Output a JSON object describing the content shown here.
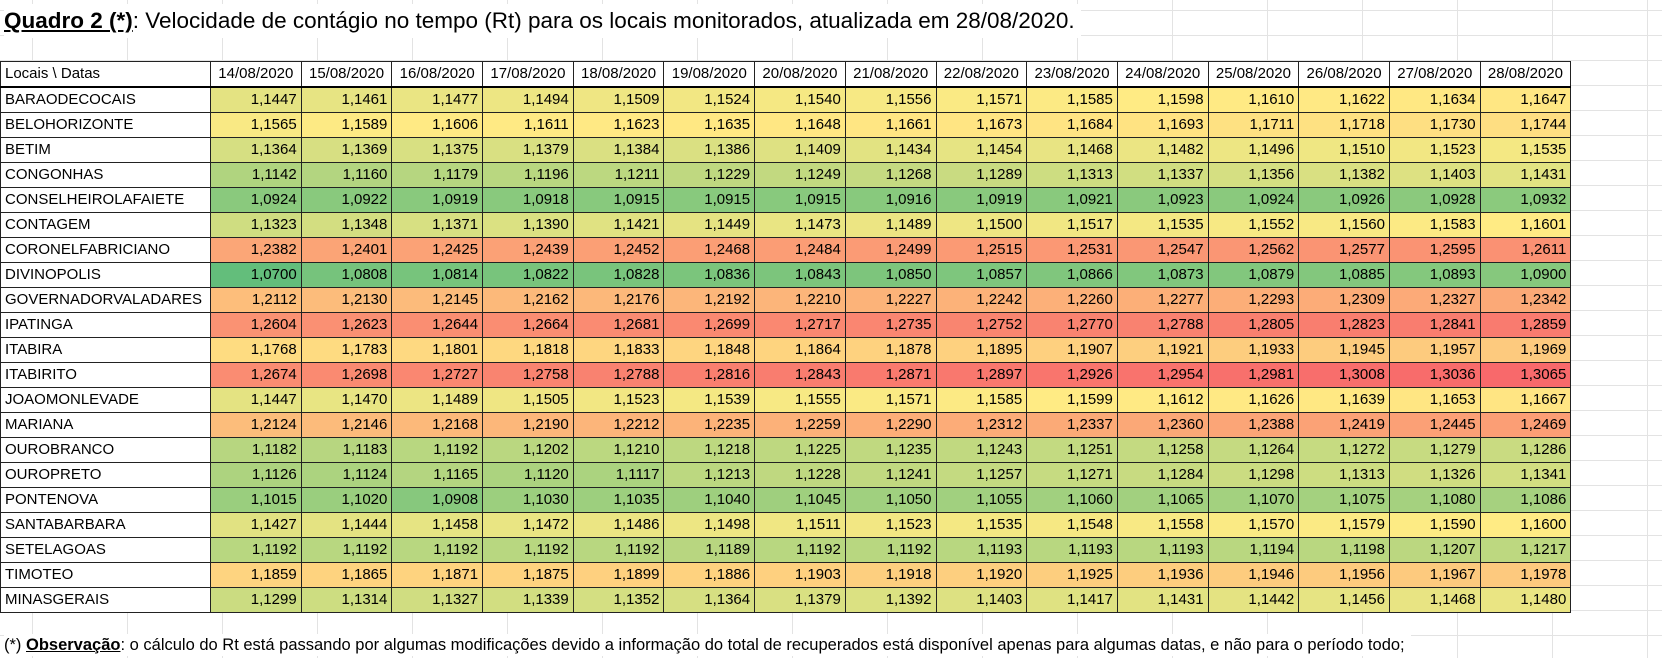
{
  "title": {
    "prefix": "Quadro 2 (*)",
    "text": ": Velocidade de contágio no tempo (Rt) para os locais monitorados,  atualizada em 28/08/2020."
  },
  "table": {
    "corner_header": "Locais   \\  Datas",
    "dates": [
      "14/08/2020",
      "15/08/2020",
      "16/08/2020",
      "17/08/2020",
      "18/08/2020",
      "19/08/2020",
      "20/08/2020",
      "21/08/2020",
      "22/08/2020",
      "23/08/2020",
      "24/08/2020",
      "25/08/2020",
      "26/08/2020",
      "27/08/2020",
      "28/08/2020"
    ],
    "rows": [
      {
        "name": "BARAODECOCAIS",
        "values": [
          "1,1447",
          "1,1461",
          "1,1477",
          "1,1494",
          "1,1509",
          "1,1524",
          "1,1540",
          "1,1556",
          "1,1571",
          "1,1585",
          "1,1598",
          "1,1610",
          "1,1622",
          "1,1634",
          "1,1647"
        ]
      },
      {
        "name": "BELOHORIZONTE",
        "values": [
          "1,1565",
          "1,1589",
          "1,1606",
          "1,1611",
          "1,1623",
          "1,1635",
          "1,1648",
          "1,1661",
          "1,1673",
          "1,1684",
          "1,1693",
          "1,1711",
          "1,1718",
          "1,1730",
          "1,1744"
        ]
      },
      {
        "name": "BETIM",
        "values": [
          "1,1364",
          "1,1369",
          "1,1375",
          "1,1379",
          "1,1384",
          "1,1386",
          "1,1409",
          "1,1434",
          "1,1454",
          "1,1468",
          "1,1482",
          "1,1496",
          "1,1510",
          "1,1523",
          "1,1535"
        ]
      },
      {
        "name": "CONGONHAS",
        "values": [
          "1,1142",
          "1,1160",
          "1,1179",
          "1,1196",
          "1,1211",
          "1,1229",
          "1,1249",
          "1,1268",
          "1,1289",
          "1,1313",
          "1,1337",
          "1,1356",
          "1,1382",
          "1,1403",
          "1,1431"
        ]
      },
      {
        "name": "CONSELHEIROLAFAIETE",
        "values": [
          "1,0924",
          "1,0922",
          "1,0919",
          "1,0918",
          "1,0915",
          "1,0915",
          "1,0915",
          "1,0916",
          "1,0919",
          "1,0921",
          "1,0923",
          "1,0924",
          "1,0926",
          "1,0928",
          "1,0932"
        ]
      },
      {
        "name": "CONTAGEM",
        "values": [
          "1,1323",
          "1,1348",
          "1,1371",
          "1,1390",
          "1,1421",
          "1,1449",
          "1,1473",
          "1,1489",
          "1,1500",
          "1,1517",
          "1,1535",
          "1,1552",
          "1,1560",
          "1,1583",
          "1,1601"
        ]
      },
      {
        "name": "CORONELFABRICIANO",
        "values": [
          "1,2382",
          "1,2401",
          "1,2425",
          "1,2439",
          "1,2452",
          "1,2468",
          "1,2484",
          "1,2499",
          "1,2515",
          "1,2531",
          "1,2547",
          "1,2562",
          "1,2577",
          "1,2595",
          "1,2611"
        ]
      },
      {
        "name": "DIVINOPOLIS",
        "values": [
          "1,0700",
          "1,0808",
          "1,0814",
          "1,0822",
          "1,0828",
          "1,0836",
          "1,0843",
          "1,0850",
          "1,0857",
          "1,0866",
          "1,0873",
          "1,0879",
          "1,0885",
          "1,0893",
          "1,0900"
        ]
      },
      {
        "name": "GOVERNADORVALADARES",
        "values": [
          "1,2112",
          "1,2130",
          "1,2145",
          "1,2162",
          "1,2176",
          "1,2192",
          "1,2210",
          "1,2227",
          "1,2242",
          "1,2260",
          "1,2277",
          "1,2293",
          "1,2309",
          "1,2327",
          "1,2342"
        ]
      },
      {
        "name": "IPATINGA",
        "values": [
          "1,2604",
          "1,2623",
          "1,2644",
          "1,2664",
          "1,2681",
          "1,2699",
          "1,2717",
          "1,2735",
          "1,2752",
          "1,2770",
          "1,2788",
          "1,2805",
          "1,2823",
          "1,2841",
          "1,2859"
        ]
      },
      {
        "name": "ITABIRA",
        "values": [
          "1,1768",
          "1,1783",
          "1,1801",
          "1,1818",
          "1,1833",
          "1,1848",
          "1,1864",
          "1,1878",
          "1,1895",
          "1,1907",
          "1,1921",
          "1,1933",
          "1,1945",
          "1,1957",
          "1,1969"
        ]
      },
      {
        "name": "ITABIRITO",
        "values": [
          "1,2674",
          "1,2698",
          "1,2727",
          "1,2758",
          "1,2788",
          "1,2816",
          "1,2843",
          "1,2871",
          "1,2897",
          "1,2926",
          "1,2954",
          "1,2981",
          "1,3008",
          "1,3036",
          "1,3065"
        ]
      },
      {
        "name": "JOAOMONLEVADE",
        "values": [
          "1,1447",
          "1,1470",
          "1,1489",
          "1,1505",
          "1,1523",
          "1,1539",
          "1,1555",
          "1,1571",
          "1,1585",
          "1,1599",
          "1,1612",
          "1,1626",
          "1,1639",
          "1,1653",
          "1,1667"
        ]
      },
      {
        "name": "MARIANA",
        "values": [
          "1,2124",
          "1,2146",
          "1,2168",
          "1,2190",
          "1,2212",
          "1,2235",
          "1,2259",
          "1,2290",
          "1,2312",
          "1,2337",
          "1,2360",
          "1,2388",
          "1,2419",
          "1,2445",
          "1,2469"
        ]
      },
      {
        "name": "OUROBRANCO",
        "values": [
          "1,1182",
          "1,1183",
          "1,1192",
          "1,1202",
          "1,1210",
          "1,1218",
          "1,1225",
          "1,1235",
          "1,1243",
          "1,1251",
          "1,1258",
          "1,1264",
          "1,1272",
          "1,1279",
          "1,1286"
        ]
      },
      {
        "name": "OUROPRETO",
        "values": [
          "1,1126",
          "1,1124",
          "1,1165",
          "1,1120",
          "1,1117",
          "1,1213",
          "1,1228",
          "1,1241",
          "1,1257",
          "1,1271",
          "1,1284",
          "1,1298",
          "1,1313",
          "1,1326",
          "1,1341"
        ]
      },
      {
        "name": "PONTENOVA",
        "values": [
          "1,1015",
          "1,1020",
          "1,0908",
          "1,1030",
          "1,1035",
          "1,1040",
          "1,1045",
          "1,1050",
          "1,1055",
          "1,1060",
          "1,1065",
          "1,1070",
          "1,1075",
          "1,1080",
          "1,1086"
        ]
      },
      {
        "name": "SANTABARBARA",
        "values": [
          "1,1427",
          "1,1444",
          "1,1458",
          "1,1472",
          "1,1486",
          "1,1498",
          "1,1511",
          "1,1523",
          "1,1535",
          "1,1548",
          "1,1558",
          "1,1570",
          "1,1579",
          "1,1590",
          "1,1600"
        ]
      },
      {
        "name": "SETELAGOAS",
        "values": [
          "1,1192",
          "1,1192",
          "1,1192",
          "1,1192",
          "1,1192",
          "1,1189",
          "1,1192",
          "1,1192",
          "1,1193",
          "1,1193",
          "1,1193",
          "1,1194",
          "1,1198",
          "1,1207",
          "1,1217"
        ]
      },
      {
        "name": "TIMOTEO",
        "values": [
          "1,1859",
          "1,1865",
          "1,1871",
          "1,1875",
          "1,1899",
          "1,1886",
          "1,1903",
          "1,1918",
          "1,1920",
          "1,1925",
          "1,1936",
          "1,1946",
          "1,1956",
          "1,1967",
          "1,1978"
        ]
      },
      {
        "name": "MINASGERAIS",
        "values": [
          "1,1299",
          "1,1314",
          "1,1327",
          "1,1339",
          "1,1352",
          "1,1364",
          "1,1379",
          "1,1392",
          "1,1403",
          "1,1417",
          "1,1431",
          "1,1442",
          "1,1456",
          "1,1468",
          "1,1480"
        ]
      }
    ],
    "color_scale": {
      "low": "#63be7b",
      "mid": "#ffeb84",
      "high": "#f8696b",
      "min_value": 1.07,
      "mid_value": 1.16,
      "max_value": 1.3065
    }
  },
  "note": {
    "prefix": "(*) ",
    "label": "Observação",
    "text": ": o cálculo do Rt está passando por algumas modificações devido a informação do total de recuperados está disponível apenas para algumas datas, e não para o período todo;"
  }
}
